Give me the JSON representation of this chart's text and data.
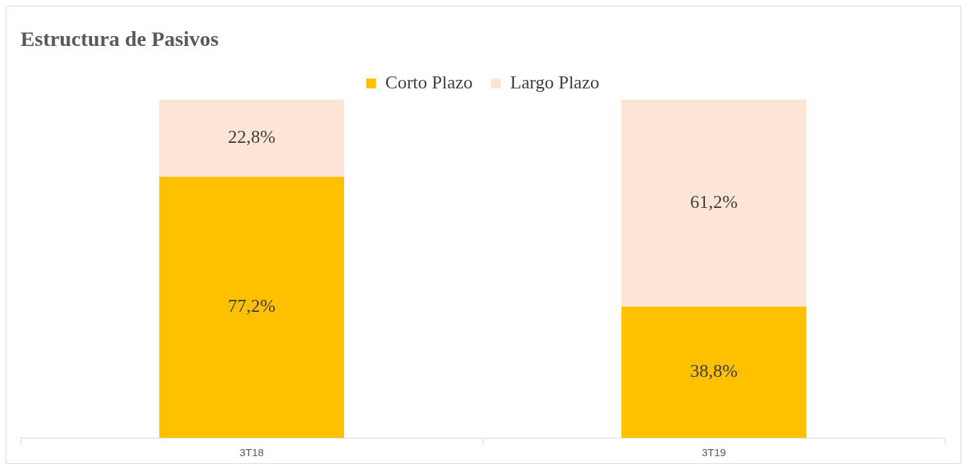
{
  "chart_data": {
    "type": "bar",
    "title": "Estructura de Pasivos",
    "categories": [
      "3T18",
      "3T19"
    ],
    "stacked": true,
    "legend": "top",
    "grid": false,
    "tick_labels": "x",
    "ylim": [
      0,
      100
    ],
    "series": [
      {
        "name": "Corto Plazo",
        "color": "#ffc000",
        "values": [
          77.2,
          38.8
        ],
        "value_labels": [
          "77,2%",
          "38,8%"
        ]
      },
      {
        "name": "Largo Plazo",
        "color": "#fce4d6",
        "values": [
          22.8,
          61.2
        ],
        "value_labels": [
          "22,8%",
          "61,2%"
        ]
      }
    ]
  }
}
